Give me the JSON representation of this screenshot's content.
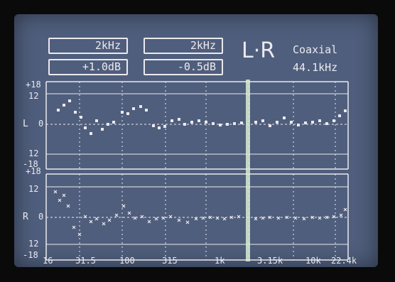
{
  "display": {
    "freq_box_1": "2kHz",
    "freq_box_2": "2kHz",
    "level_box_1": "+1.0dB",
    "level_box_2": "-0.5dB",
    "mode_label": "L·R",
    "input_label": "Coaxial",
    "sample_rate": "44.1kHz"
  },
  "axes": {
    "y_ticks": {
      "top_18": "+18",
      "top_12": "12",
      "zero": "0",
      "bottom_12": "12",
      "bottom_18": "-18"
    },
    "channel_left": "L",
    "channel_right": "R",
    "x_ticks": [
      "16",
      "31.5",
      "100",
      "315",
      "1k",
      "3.15k",
      "10k",
      "22.4k"
    ]
  },
  "colors": {
    "screen": "#4f5e7c",
    "trace": "#ece9ef",
    "cursor": "#d8ecd4"
  }
}
